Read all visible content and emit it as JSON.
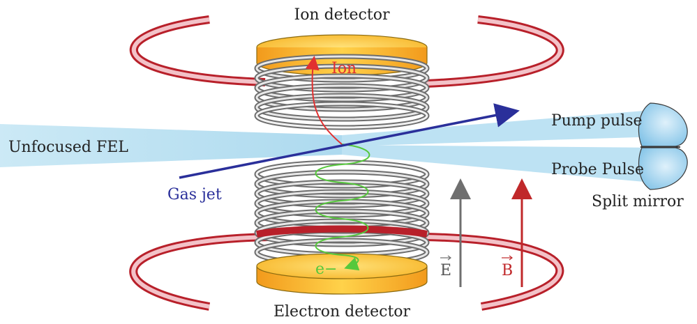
{
  "labels": {
    "ion_detector": "Ion detector",
    "electron_detector": "Electron detector",
    "ion": "Ion",
    "electron": "e−",
    "fel_beam": "Unfocused FEL",
    "gas_jet": "Gas jet",
    "pump_pulse": "Pump pulse",
    "probe_pulse": "Probe Pulse",
    "split_mirror": "Split mirror",
    "e_field": "E",
    "b_field": "B"
  },
  "colors": {
    "coil_red": "#b8202a",
    "coil_red_light": "#e8a0a8",
    "detector_gold": "#f4b12e",
    "detector_gold_light": "#ffe38a",
    "beam_blue": "#bfe3f2",
    "gas_jet_blue": "#2a2f9a",
    "ion_red": "#e23030",
    "electron_green": "#56c83c",
    "e_field_gray": "#6f6f6f",
    "b_field_red": "#c0282a",
    "ring_gray": "#7a7a7a"
  }
}
